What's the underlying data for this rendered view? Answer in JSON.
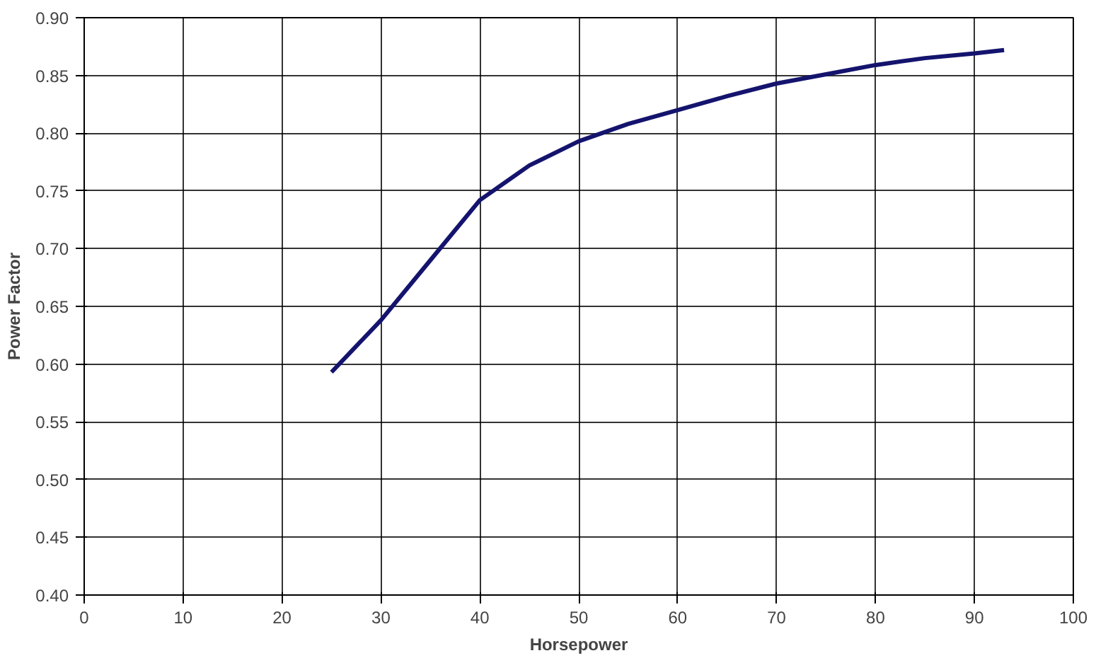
{
  "chart_data": {
    "type": "line",
    "xlabel": "Horsepower",
    "ylabel": "Power Factor",
    "x": [
      25,
      30,
      35,
      40,
      45,
      50,
      55,
      60,
      65,
      70,
      75,
      80,
      85,
      90,
      93
    ],
    "series": [
      {
        "color": "#14146e",
        "values": [
          0.593,
          0.638,
          0.69,
          0.742,
          0.772,
          0.793,
          0.808,
          0.82,
          0.832,
          0.843,
          0.851,
          0.859,
          0.865,
          0.869,
          0.872
        ]
      }
    ],
    "xlim": [
      0,
      100
    ],
    "xticks": [
      0,
      10,
      20,
      30,
      40,
      50,
      60,
      70,
      80,
      90,
      100
    ],
    "ylim": [
      0.4,
      0.9
    ],
    "yticks": [
      {
        "value": 0.4,
        "label": "0.40"
      },
      {
        "value": 0.45,
        "label": "0.45"
      },
      {
        "value": 0.5,
        "label": "0.50"
      },
      {
        "value": 0.55,
        "label": "0.55"
      },
      {
        "value": 0.6,
        "label": "0.60"
      },
      {
        "value": 0.65,
        "label": "0.65"
      },
      {
        "value": 0.7,
        "label": "0.70"
      },
      {
        "value": 0.75,
        "label": "0.75"
      },
      {
        "value": 0.8,
        "label": "0.80"
      },
      {
        "value": 0.85,
        "label": "0.85"
      },
      {
        "value": 0.9,
        "label": "0.90"
      }
    ],
    "grid": true,
    "line_style": "solid"
  }
}
